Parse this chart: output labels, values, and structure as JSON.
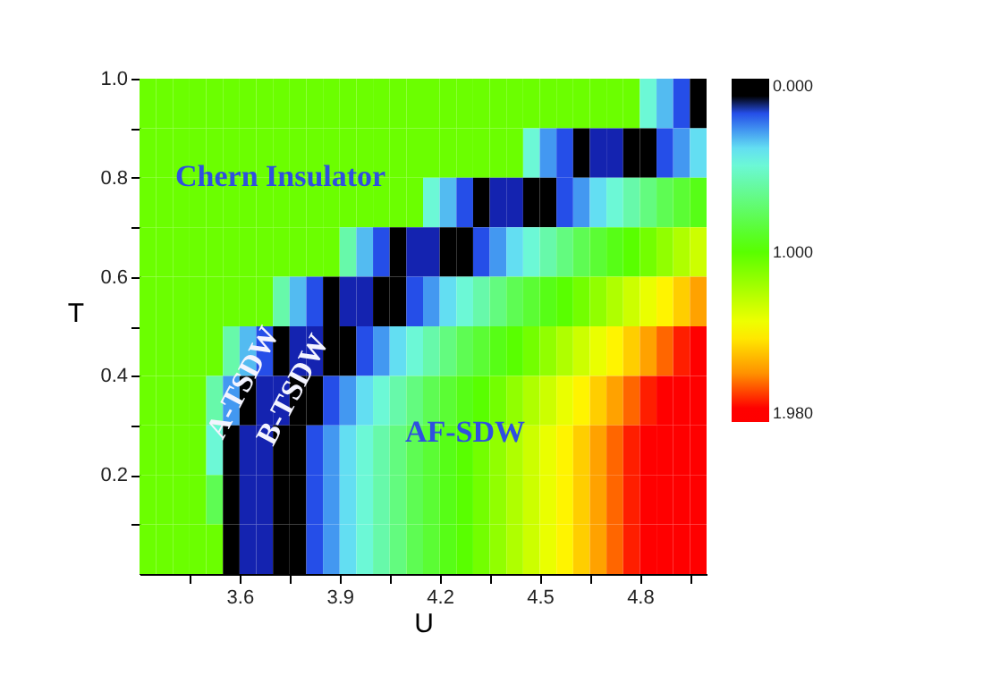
{
  "chart_data": {
    "type": "heatmap",
    "xlabel": "U",
    "ylabel": "T",
    "x": [
      3.325,
      3.375,
      3.425,
      3.475,
      3.525,
      3.575,
      3.625,
      3.675,
      3.725,
      3.775,
      3.825,
      3.875,
      3.925,
      3.975,
      4.025,
      4.075,
      4.125,
      4.175,
      4.225,
      4.275,
      4.325,
      4.375,
      4.425,
      4.475,
      4.525,
      4.575,
      4.625,
      4.675,
      4.725,
      4.775,
      4.825,
      4.875,
      4.925,
      4.975
    ],
    "y": [
      0.95,
      0.85,
      0.75,
      0.65,
      0.55,
      0.45,
      0.35,
      0.25,
      0.15,
      0.05
    ],
    "cells": [
      [
        1.05,
        1.05,
        1.05,
        1.05,
        1.05,
        1.05,
        1.05,
        1.05,
        1.05,
        1.05,
        1.05,
        1.05,
        1.05,
        1.05,
        1.05,
        1.05,
        1.05,
        1.05,
        1.05,
        1.05,
        1.05,
        1.05,
        1.05,
        1.05,
        1.05,
        1.05,
        1.05,
        1.05,
        1.05,
        1.05,
        0.5,
        0.35,
        0.2,
        0
      ],
      [
        1.05,
        1.05,
        1.05,
        1.05,
        1.05,
        1.05,
        1.05,
        1.05,
        1.05,
        1.05,
        1.05,
        1.05,
        1.05,
        1.05,
        1.05,
        1.05,
        1.05,
        1.05,
        1.05,
        1.05,
        1.05,
        1.05,
        1.05,
        0.5,
        0.3,
        0.2,
        0,
        0.15,
        0.15,
        0,
        0.1,
        0.2,
        0.3,
        0.4
      ],
      [
        1.05,
        1.05,
        1.05,
        1.05,
        1.05,
        1.05,
        1.05,
        1.05,
        1.05,
        1.05,
        1.05,
        1.05,
        1.05,
        1.05,
        1.05,
        1.05,
        1.05,
        0.5,
        0.35,
        0.2,
        0,
        0.15,
        0.15,
        0,
        0.1,
        0.2,
        0.3,
        0.4,
        0.5,
        0.6,
        0.7,
        0.8,
        0.87,
        0.94
      ],
      [
        1.05,
        1.05,
        1.05,
        1.05,
        1.05,
        1.05,
        1.05,
        1.05,
        1.05,
        1.05,
        1.05,
        1.05,
        0.6,
        0.35,
        0.2,
        0,
        0.15,
        0.15,
        0,
        0.1,
        0.2,
        0.3,
        0.4,
        0.5,
        0.6,
        0.7,
        0.8,
        0.87,
        0.94,
        1.0,
        1.07,
        1.15,
        1.23,
        1.31
      ],
      [
        1.05,
        1.05,
        1.05,
        1.05,
        1.05,
        1.05,
        1.05,
        1.05,
        0.6,
        0.35,
        0.2,
        0,
        0.15,
        0.15,
        0,
        0.1,
        0.2,
        0.3,
        0.4,
        0.5,
        0.6,
        0.7,
        0.8,
        0.87,
        0.94,
        1.0,
        1.07,
        1.15,
        1.23,
        1.31,
        1.39,
        1.47,
        1.56,
        1.66
      ],
      [
        1.05,
        1.05,
        1.05,
        1.05,
        1.05,
        0.6,
        0.35,
        0.2,
        0,
        0.15,
        0.15,
        0,
        0.1,
        0.2,
        0.3,
        0.4,
        0.5,
        0.6,
        0.7,
        0.8,
        0.87,
        0.94,
        1.0,
        1.07,
        1.15,
        1.23,
        1.31,
        1.39,
        1.47,
        1.56,
        1.66,
        1.76,
        1.86,
        1.95
      ],
      [
        1.05,
        1.05,
        1.05,
        1.05,
        0.6,
        0.3,
        0,
        0.15,
        0.15,
        0,
        0.1,
        0.2,
        0.3,
        0.4,
        0.5,
        0.6,
        0.7,
        0.8,
        0.87,
        0.94,
        1.0,
        1.07,
        1.15,
        1.23,
        1.31,
        1.39,
        1.47,
        1.56,
        1.66,
        1.76,
        1.86,
        1.95,
        1.98,
        1.98
      ],
      [
        1.05,
        1.05,
        1.05,
        1.05,
        0.5,
        0,
        0.15,
        0.15,
        0,
        0.1,
        0.2,
        0.3,
        0.4,
        0.5,
        0.6,
        0.7,
        0.8,
        0.87,
        0.94,
        1.0,
        1.07,
        1.15,
        1.23,
        1.31,
        1.39,
        1.47,
        1.56,
        1.66,
        1.76,
        1.86,
        1.95,
        1.98,
        1.98,
        1.98
      ],
      [
        1.05,
        1.05,
        1.05,
        1.05,
        0.8,
        0,
        0.15,
        0.15,
        0,
        0.1,
        0.2,
        0.3,
        0.4,
        0.5,
        0.6,
        0.7,
        0.8,
        0.87,
        0.94,
        1.0,
        1.07,
        1.15,
        1.23,
        1.31,
        1.39,
        1.47,
        1.56,
        1.66,
        1.76,
        1.86,
        1.95,
        1.98,
        1.98,
        1.98
      ],
      [
        1.05,
        1.05,
        1.05,
        1.05,
        1.05,
        0,
        0.15,
        0.15,
        0,
        0.1,
        0.2,
        0.3,
        0.4,
        0.5,
        0.6,
        0.7,
        0.8,
        0.87,
        0.94,
        1.0,
        1.07,
        1.15,
        1.23,
        1.31,
        1.39,
        1.47,
        1.56,
        1.66,
        1.76,
        1.86,
        1.95,
        1.98,
        1.98,
        1.98
      ]
    ],
    "xlim": [
      3.3,
      5.0
    ],
    "ylim": [
      0,
      1.0
    ],
    "xticks": [
      {
        "value": 3.45,
        "label": null
      },
      3.6,
      {
        "value": 3.75,
        "label": null
      },
      3.9,
      {
        "value": 4.05,
        "label": null
      },
      4.2,
      {
        "value": 4.35,
        "label": null
      },
      4.5,
      {
        "value": 4.65,
        "label": null
      },
      4.8,
      {
        "value": 4.95,
        "label": null
      }
    ],
    "yticks": [
      {
        "value": 0.1,
        "label": null
      },
      0.2,
      {
        "value": 0.3,
        "label": null
      },
      0.4,
      {
        "value": 0.5,
        "label": null
      },
      0.6,
      {
        "value": 0.7,
        "label": null
      },
      0.8,
      {
        "value": 0.9,
        "label": null
      },
      {
        "value": 1.0,
        "label": "1.0"
      }
    ],
    "clim": [
      0,
      1.98
    ],
    "cticks": [
      {
        "value": 0,
        "label": "0.000"
      },
      {
        "value": 1,
        "label": "1.000"
      },
      {
        "value": 1.98,
        "label": "1.980"
      }
    ],
    "annotations": [
      "Chern Insulator",
      "A-TSDW",
      "B-TSDW",
      "AF-SDW"
    ]
  }
}
